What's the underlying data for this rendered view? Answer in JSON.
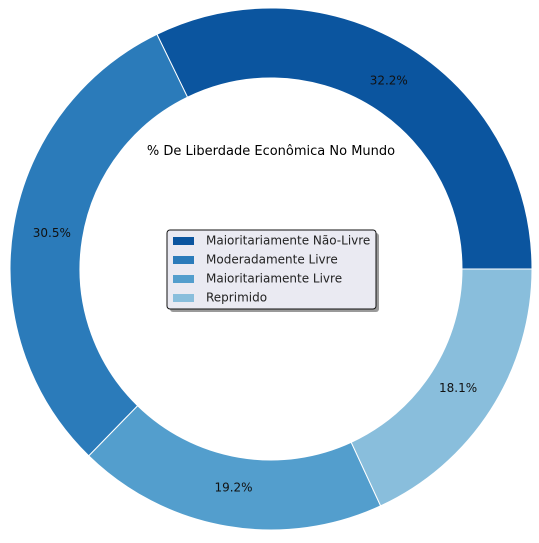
{
  "chart_data": {
    "type": "pie",
    "variant": "donut",
    "title": "% De Liberdade Econômica No Mundo",
    "slices": [
      {
        "label": "Maioritariamente Não-Livre",
        "value": 32.2,
        "value_label": "32.2%",
        "color": "#0b559f"
      },
      {
        "label": "Moderadamente Livre",
        "value": 30.5,
        "value_label": "30.5%",
        "color": "#2b7bba"
      },
      {
        "label": "Maioritariamente Livre",
        "value": 19.2,
        "value_label": "19.2%",
        "color": "#539ecd"
      },
      {
        "label": "Reprimido",
        "value": 18.1,
        "value_label": "18.1%",
        "color": "#89bedc"
      }
    ],
    "start_angle_deg": 0,
    "direction": "counterclockwise",
    "legend_position": "center",
    "legend_background": "#eaeaf2"
  }
}
